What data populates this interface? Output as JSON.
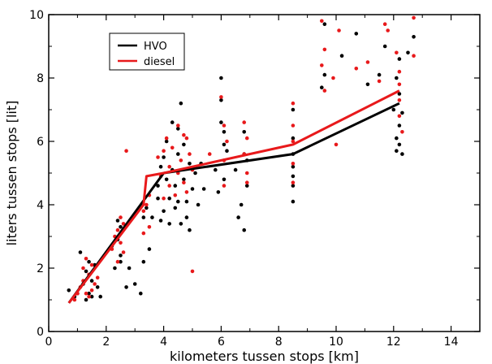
{
  "chart_data": {
    "type": "scatter",
    "title": "",
    "xlabel": "kilometers tussen stops [km]",
    "ylabel": "liters tussen stops [lit]",
    "xlim": [
      0,
      15
    ],
    "ylim": [
      0,
      10
    ],
    "xticks": [
      0,
      2,
      4,
      6,
      8,
      10,
      12,
      14
    ],
    "yticks": [
      0,
      2,
      4,
      6,
      8,
      10
    ],
    "grid": false,
    "legend_position": "top-left",
    "colors": {
      "HVO": "#000000",
      "diesel": "#e8191b"
    },
    "series": [
      {
        "name": "HVO",
        "points": [
          [
            0.7,
            1.3
          ],
          [
            0.9,
            1.1
          ],
          [
            1.0,
            1.2
          ],
          [
            1.1,
            2.5
          ],
          [
            1.2,
            1.5
          ],
          [
            1.3,
            1.9
          ],
          [
            1.3,
            1.0
          ],
          [
            1.4,
            2.2
          ],
          [
            1.4,
            1.2
          ],
          [
            1.5,
            1.6
          ],
          [
            1.5,
            1.1
          ],
          [
            1.6,
            2.1
          ],
          [
            1.7,
            1.4
          ],
          [
            1.8,
            1.1
          ],
          [
            2.2,
            2.7
          ],
          [
            2.3,
            2.0
          ],
          [
            2.4,
            3.5
          ],
          [
            2.4,
            2.9
          ],
          [
            2.5,
            2.4
          ],
          [
            2.5,
            2.2
          ],
          [
            2.5,
            3.3
          ],
          [
            2.7,
            1.4
          ],
          [
            2.8,
            2.0
          ],
          [
            3.0,
            1.5
          ],
          [
            3.2,
            1.2
          ],
          [
            3.3,
            2.2
          ],
          [
            3.3,
            3.6
          ],
          [
            3.4,
            3.9
          ],
          [
            3.5,
            2.6
          ],
          [
            3.6,
            3.6
          ],
          [
            3.8,
            4.2
          ],
          [
            3.8,
            4.6
          ],
          [
            3.9,
            5.2
          ],
          [
            3.9,
            3.5
          ],
          [
            4.0,
            3.8
          ],
          [
            4.0,
            5.5
          ],
          [
            4.1,
            4.8
          ],
          [
            4.1,
            6.0
          ],
          [
            4.2,
            4.2
          ],
          [
            4.2,
            3.4
          ],
          [
            4.3,
            5.1
          ],
          [
            4.3,
            6.6
          ],
          [
            4.4,
            4.6
          ],
          [
            4.4,
            3.9
          ],
          [
            4.5,
            6.4
          ],
          [
            4.5,
            5.6
          ],
          [
            4.5,
            4.1
          ],
          [
            4.6,
            3.4
          ],
          [
            4.6,
            7.2
          ],
          [
            4.7,
            4.8
          ],
          [
            4.7,
            5.9
          ],
          [
            4.8,
            4.1
          ],
          [
            4.8,
            3.6
          ],
          [
            4.9,
            5.3
          ],
          [
            4.9,
            3.2
          ],
          [
            5.0,
            4.5
          ],
          [
            5.1,
            5.0
          ],
          [
            5.2,
            4.0
          ],
          [
            5.3,
            5.3
          ],
          [
            5.4,
            4.5
          ],
          [
            5.8,
            5.1
          ],
          [
            5.9,
            4.4
          ],
          [
            6.0,
            8.0
          ],
          [
            6.0,
            7.3
          ],
          [
            6.0,
            6.6
          ],
          [
            6.1,
            5.9
          ],
          [
            6.1,
            4.8
          ],
          [
            6.1,
            6.3
          ],
          [
            6.2,
            5.7
          ],
          [
            6.5,
            5.1
          ],
          [
            6.6,
            3.6
          ],
          [
            6.7,
            4.0
          ],
          [
            6.8,
            3.2
          ],
          [
            6.8,
            5.6
          ],
          [
            6.8,
            6.3
          ],
          [
            6.9,
            4.6
          ],
          [
            6.9,
            5.4
          ],
          [
            8.5,
            4.1
          ],
          [
            8.5,
            4.6
          ],
          [
            8.5,
            6.1
          ],
          [
            8.5,
            5.2
          ],
          [
            8.5,
            7.0
          ],
          [
            8.5,
            4.9
          ],
          [
            8.5,
            5.6
          ],
          [
            9.5,
            7.7
          ],
          [
            9.6,
            8.1
          ],
          [
            9.6,
            9.7
          ],
          [
            10.2,
            8.7
          ],
          [
            10.7,
            9.4
          ],
          [
            11.1,
            7.8
          ],
          [
            11.5,
            8.1
          ],
          [
            11.7,
            9.0
          ],
          [
            12.0,
            7.0
          ],
          [
            12.1,
            6.1
          ],
          [
            12.1,
            5.7
          ],
          [
            12.1,
            8.0
          ],
          [
            12.2,
            8.6
          ],
          [
            12.2,
            6.5
          ],
          [
            12.2,
            7.5
          ],
          [
            12.2,
            5.9
          ],
          [
            12.3,
            6.9
          ],
          [
            12.3,
            5.6
          ],
          [
            12.5,
            8.8
          ],
          [
            12.7,
            9.3
          ]
        ],
        "line": [
          [
            0.7,
            0.9
          ],
          [
            4.0,
            5.0
          ],
          [
            8.5,
            5.6
          ],
          [
            12.2,
            7.2
          ]
        ]
      },
      {
        "name": "diesel",
        "points": [
          [
            0.9,
            1.0
          ],
          [
            1.0,
            1.2
          ],
          [
            1.1,
            1.4
          ],
          [
            1.2,
            1.6
          ],
          [
            1.2,
            2.0
          ],
          [
            1.3,
            1.2
          ],
          [
            1.3,
            2.3
          ],
          [
            1.4,
            1.8
          ],
          [
            1.4,
            1.1
          ],
          [
            1.5,
            2.1
          ],
          [
            1.5,
            1.3
          ],
          [
            1.6,
            1.5
          ],
          [
            1.7,
            1.7
          ],
          [
            2.2,
            2.6
          ],
          [
            2.3,
            3.0
          ],
          [
            2.4,
            3.2
          ],
          [
            2.4,
            2.2
          ],
          [
            2.5,
            3.6
          ],
          [
            2.5,
            2.8
          ],
          [
            2.6,
            2.5
          ],
          [
            2.6,
            3.4
          ],
          [
            2.7,
            5.7
          ],
          [
            3.3,
            3.8
          ],
          [
            3.3,
            3.1
          ],
          [
            3.4,
            4.0
          ],
          [
            3.5,
            3.3
          ],
          [
            3.5,
            4.3
          ],
          [
            3.8,
            5.5
          ],
          [
            3.9,
            4.9
          ],
          [
            4.0,
            5.7
          ],
          [
            4.0,
            4.2
          ],
          [
            4.1,
            6.1
          ],
          [
            4.2,
            5.2
          ],
          [
            4.2,
            4.6
          ],
          [
            4.3,
            5.8
          ],
          [
            4.4,
            4.3
          ],
          [
            4.5,
            6.5
          ],
          [
            4.5,
            5.0
          ],
          [
            4.6,
            5.4
          ],
          [
            4.7,
            6.2
          ],
          [
            4.7,
            4.7
          ],
          [
            4.8,
            4.4
          ],
          [
            4.8,
            6.1
          ],
          [
            4.9,
            5.6
          ],
          [
            5.0,
            5.1
          ],
          [
            5.0,
            1.9
          ],
          [
            5.6,
            5.6
          ],
          [
            6.0,
            7.4
          ],
          [
            6.1,
            6.5
          ],
          [
            6.1,
            5.4
          ],
          [
            6.1,
            4.6
          ],
          [
            6.2,
            6.0
          ],
          [
            6.8,
            6.6
          ],
          [
            6.8,
            5.6
          ],
          [
            6.9,
            4.7
          ],
          [
            6.9,
            6.1
          ],
          [
            6.9,
            5.0
          ],
          [
            8.5,
            6.0
          ],
          [
            8.5,
            5.3
          ],
          [
            8.5,
            7.2
          ],
          [
            8.5,
            6.5
          ],
          [
            8.5,
            4.7
          ],
          [
            9.5,
            9.8
          ],
          [
            9.5,
            8.4
          ],
          [
            9.6,
            8.9
          ],
          [
            9.6,
            7.6
          ],
          [
            9.9,
            8.0
          ],
          [
            10.0,
            5.9
          ],
          [
            10.1,
            9.5
          ],
          [
            10.7,
            8.3
          ],
          [
            11.1,
            8.5
          ],
          [
            11.5,
            7.9
          ],
          [
            11.7,
            9.7
          ],
          [
            11.8,
            9.5
          ],
          [
            12.1,
            8.8
          ],
          [
            12.2,
            7.3
          ],
          [
            12.2,
            6.8
          ],
          [
            12.2,
            8.2
          ],
          [
            12.2,
            7.8
          ],
          [
            12.3,
            6.3
          ],
          [
            12.7,
            9.9
          ],
          [
            12.7,
            8.7
          ]
        ],
        "line": [
          [
            0.7,
            0.9
          ],
          [
            3.3,
            4.0
          ],
          [
            3.4,
            4.9
          ],
          [
            4.0,
            5.0
          ],
          [
            8.5,
            5.9
          ],
          [
            12.2,
            7.6
          ]
        ]
      }
    ]
  }
}
